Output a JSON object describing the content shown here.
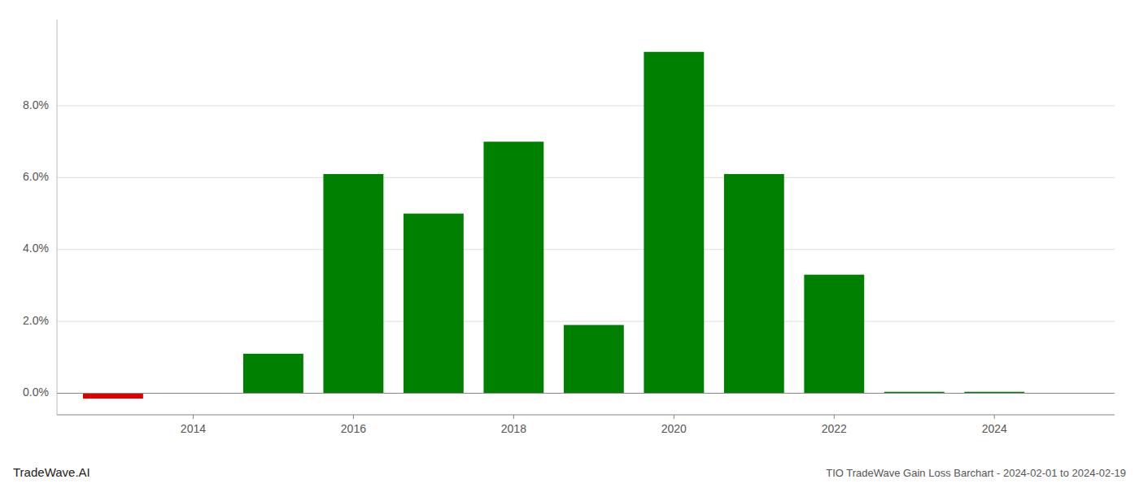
{
  "chart_data": {
    "type": "bar",
    "title": "TIO TradeWave Gain Loss Barchart - 2024-02-01 to 2024-02-19",
    "annotations": [
      "TradeWave.AI"
    ],
    "x": [
      2013,
      2014,
      2015,
      2016,
      2017,
      2018,
      2019,
      2020,
      2021,
      2022,
      2023,
      2024
    ],
    "values": [
      -0.0015,
      0.0001,
      0.011,
      0.061,
      0.05,
      0.07,
      0.019,
      0.095,
      0.061,
      0.033,
      0.0004,
      0.0004
    ],
    "colors": [
      "#dd0000",
      "#008000",
      "#008000",
      "#008000",
      "#008000",
      "#008000",
      "#008000",
      "#008000",
      "#008000",
      "#008000",
      "#008000",
      "#008000"
    ],
    "xlim": [
      2012.3,
      2025.5
    ],
    "xticks": [
      2014,
      2016,
      2018,
      2020,
      2022,
      2024
    ],
    "ylim": [
      -0.006,
      0.104
    ],
    "yticks": [
      {
        "value": 0.0,
        "label": "0.0%"
      },
      {
        "value": 0.02,
        "label": "2.0%"
      },
      {
        "value": 0.04,
        "label": "4.0%"
      },
      {
        "value": 0.06,
        "label": "6.0%"
      },
      {
        "value": 0.08,
        "label": "8.0%"
      }
    ],
    "grid": true
  }
}
